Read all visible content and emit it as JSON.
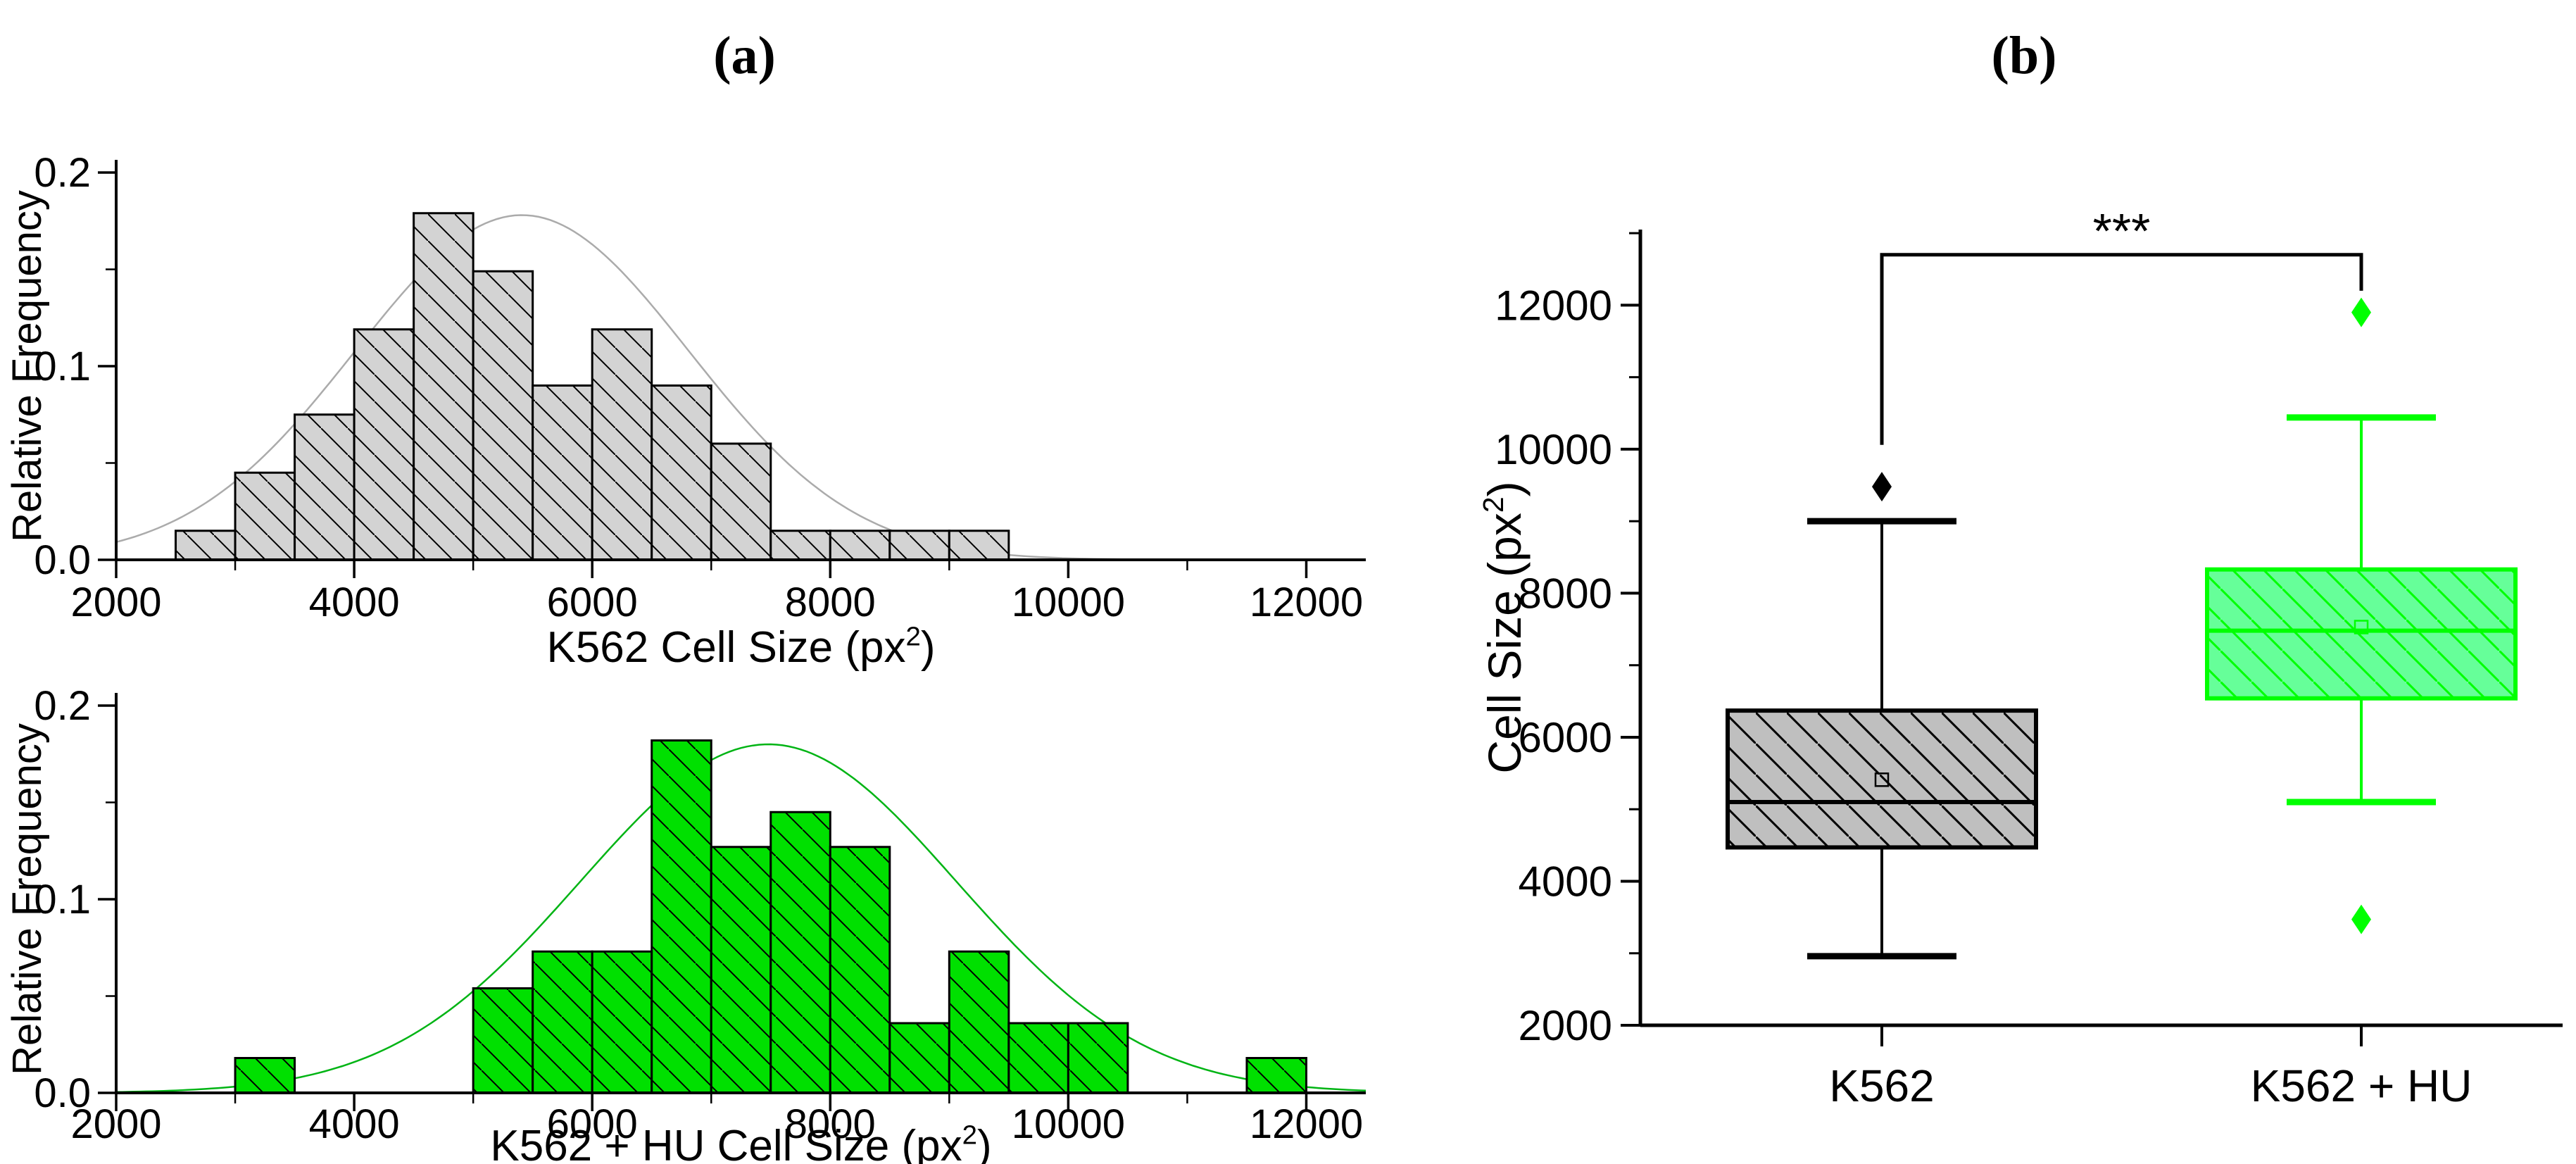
{
  "panels": {
    "a": {
      "label": "(a)"
    },
    "b": {
      "label": "(b)"
    }
  },
  "colors": {
    "background": "#ffffff",
    "axis": "#000000",
    "gray_bar_fill": "#d3d3d3",
    "gray_box_fill": "#bfbfbf",
    "green_bar_fill": "#00e000",
    "green_box_fill": "#66ff99",
    "lime": "#00ff00",
    "gray_fit": "#ababab",
    "green_fit": "#00b414"
  },
  "chart_data": [
    {
      "type": "bar",
      "subtype": "histogram",
      "name": "k562-cell-size-histogram",
      "xlabel": "K562 Cell Size (px²)",
      "ylabel": "Relative Frequency",
      "xlim": [
        2000,
        12500
      ],
      "ylim": [
        0,
        0.2
      ],
      "bin_width": 500,
      "bins": [
        2500,
        3000,
        3500,
        4000,
        4500,
        5000,
        5500,
        6000,
        6500,
        7000,
        7500,
        8000,
        8500,
        9000
      ],
      "values": [
        0.015,
        0.045,
        0.075,
        0.119,
        0.179,
        0.149,
        0.09,
        0.119,
        0.09,
        0.06,
        0.015,
        0.015,
        0.015,
        0.015
      ],
      "fit": {
        "type": "gaussian",
        "amp": 0.178,
        "mu": 5410,
        "sigma": 1400
      },
      "x_ticks": {
        "major": [
          2000,
          4000,
          6000,
          8000,
          10000,
          12000
        ],
        "minor": [
          3000,
          5000,
          7000,
          9000,
          11000
        ]
      },
      "y_ticks": {
        "major": [
          0,
          0.1,
          0.2
        ],
        "major_labels": [
          "0.0",
          "0.1",
          "0.2"
        ],
        "minor": [
          0.05,
          0.15
        ]
      },
      "bar_fill": "#d3d3d3",
      "bar_edge": "#000000",
      "hatch": "#000000",
      "fit_color": "#ababab",
      "grid": false
    },
    {
      "type": "bar",
      "subtype": "histogram",
      "name": "k562-hu-cell-size-histogram",
      "xlabel": "K562 + HU Cell Size (px²)",
      "ylabel": "Relative Frequency",
      "xlim": [
        2000,
        12500
      ],
      "ylim": [
        0,
        0.2
      ],
      "bin_width": 500,
      "bins": [
        3000,
        5000,
        5500,
        6000,
        6500,
        7000,
        7500,
        8000,
        8500,
        9000,
        9500,
        10000,
        11500
      ],
      "values": [
        0.018,
        0.054,
        0.073,
        0.073,
        0.182,
        0.127,
        0.145,
        0.127,
        0.036,
        0.073,
        0.036,
        0.036,
        0.018
      ],
      "fit": {
        "type": "gaussian",
        "amp": 0.18,
        "mu": 7480,
        "sigma": 1580
      },
      "x_ticks": {
        "major": [
          2000,
          4000,
          6000,
          8000,
          10000,
          12000
        ],
        "minor": [
          3000,
          5000,
          7000,
          9000,
          11000
        ]
      },
      "y_ticks": {
        "major": [
          0,
          0.1,
          0.2
        ],
        "major_labels": [
          "0.0",
          "0.1",
          "0.2"
        ],
        "minor": [
          0.05,
          0.15
        ]
      },
      "bar_fill": "#00e000",
      "bar_edge": "#000000",
      "hatch": "#000000",
      "fit_color": "#00b414",
      "grid": false
    },
    {
      "type": "box",
      "name": "cell-size-boxplot",
      "ylabel": "Cell Size (px²)",
      "ylim": [
        2000,
        13050
      ],
      "y_ticks": {
        "major": [
          2000,
          4000,
          6000,
          8000,
          10000,
          12000
        ],
        "minor": [
          3000,
          5000,
          7000,
          9000,
          11000,
          13000
        ]
      },
      "categories": [
        "K562",
        "K562 + HU"
      ],
      "series": [
        {
          "name": "K562",
          "whisker_low": 2960,
          "q1": 4470,
          "median": 5100,
          "mean": 5410,
          "q3": 6370,
          "whisker_high": 9000,
          "outliers": [
            9480
          ],
          "edge": "#000000",
          "fill": "#bfbfbf",
          "hatch": "#000000"
        },
        {
          "name": "K562 + HU",
          "whisker_low": 5100,
          "q1": 6540,
          "median": 7480,
          "mean": 7530,
          "q3": 8330,
          "whisker_high": 10440,
          "outliers": [
            11900,
            3470
          ],
          "edge": "#00ff00",
          "fill": "#66ff99",
          "hatch": "#00ff00"
        }
      ],
      "significance": {
        "label": "***",
        "bar_y": 12700,
        "drop_left_to": 10060,
        "drop_right_to": 12200
      },
      "grid": false
    }
  ]
}
